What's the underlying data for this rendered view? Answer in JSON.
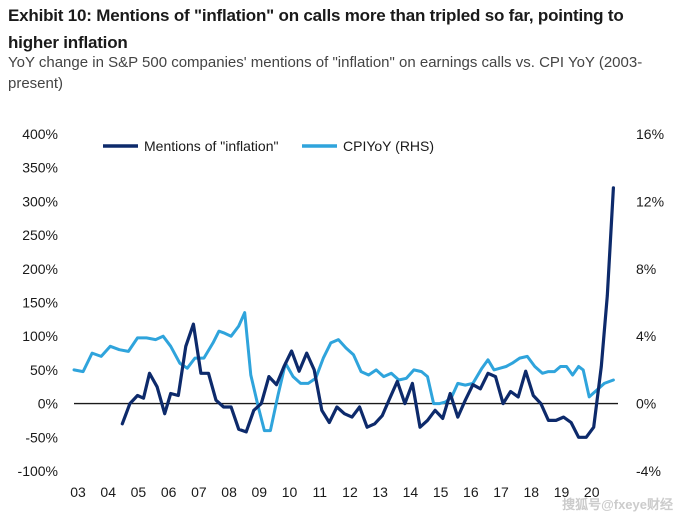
{
  "title": "Exhibit 10: Mentions of \"inflation\" on calls more than tripled so far, pointing to higher inflation",
  "subtitle": "YoY change in S&P 500 companies' mentions of \"inflation\" on earnings calls vs. CPI YoY (2003-present)",
  "watermark": "搜狐号@fxeye财经",
  "chart_data": {
    "type": "line",
    "title": "Exhibit 10: Mentions of \"inflation\" on calls more than tripled so far, pointing to higher inflation",
    "xlabel": "",
    "ylabel": "",
    "ylabel_right": "",
    "xlim": [
      2003,
      2021.4
    ],
    "ylim": [
      -100,
      400
    ],
    "ylim_right": [
      -4,
      16
    ],
    "y_ticks": [
      -100,
      -50,
      0,
      50,
      100,
      150,
      200,
      250,
      300,
      350,
      400
    ],
    "y_tick_labels": [
      "-100%",
      "-50%",
      "0%",
      "50%",
      "100%",
      "150%",
      "200%",
      "250%",
      "300%",
      "350%",
      "400%"
    ],
    "y_right_ticks": [
      -4,
      0,
      4,
      8,
      12,
      16
    ],
    "y_right_tick_labels": [
      "-4%",
      "0%",
      "4%",
      "8%",
      "12%",
      "16%"
    ],
    "x_ticks": [
      2003,
      2004,
      2005,
      2006,
      2007,
      2008,
      2009,
      2010,
      2011,
      2012,
      2013,
      2014,
      2015,
      2016,
      2017,
      2018,
      2019,
      2020
    ],
    "x_tick_labels": [
      "03",
      "04",
      "05",
      "06",
      "07",
      "08",
      "09",
      "10",
      "11",
      "12",
      "13",
      "14",
      "15",
      "16",
      "17",
      "18",
      "19",
      "20"
    ],
    "legend": {
      "position": "top-left",
      "orientation": "horizontal"
    },
    "series": [
      {
        "name": "Mentions of \"inflation\"",
        "axis": "left",
        "color": "#0d2a6b",
        "x": [
          2004.6,
          2004.85,
          2005.1,
          2005.3,
          2005.5,
          2005.75,
          2006.0,
          2006.2,
          2006.45,
          2006.7,
          2006.95,
          2007.2,
          2007.45,
          2007.7,
          2007.95,
          2008.2,
          2008.45,
          2008.7,
          2008.95,
          2009.2,
          2009.45,
          2009.7,
          2009.95,
          2010.2,
          2010.45,
          2010.7,
          2010.95,
          2011.2,
          2011.45,
          2011.7,
          2011.95,
          2012.2,
          2012.45,
          2012.7,
          2012.95,
          2013.2,
          2013.45,
          2013.7,
          2013.95,
          2014.2,
          2014.45,
          2014.7,
          2014.95,
          2015.2,
          2015.45,
          2015.7,
          2015.95,
          2016.2,
          2016.45,
          2016.7,
          2016.95,
          2017.2,
          2017.45,
          2017.7,
          2017.95,
          2018.2,
          2018.45,
          2018.7,
          2018.95,
          2019.2,
          2019.45,
          2019.7,
          2019.95,
          2020.2,
          2020.45,
          2020.65,
          2020.85
        ],
        "values": [
          -30,
          0,
          12,
          8,
          45,
          25,
          -15,
          15,
          12,
          85,
          118,
          45,
          45,
          5,
          -5,
          -5,
          -38,
          -42,
          -10,
          0,
          40,
          28,
          55,
          78,
          48,
          75,
          50,
          -10,
          -28,
          -5,
          -15,
          -20,
          -5,
          -35,
          -30,
          -18,
          8,
          33,
          0,
          30,
          -35,
          -25,
          -10,
          -22,
          15,
          -20,
          5,
          28,
          22,
          45,
          40,
          0,
          18,
          10,
          48,
          12,
          0,
          -25,
          -25,
          -20,
          -28,
          -50,
          -50,
          -35,
          55,
          160,
          320
        ]
      },
      {
        "name": "CPIYoY (RHS)",
        "axis": "right",
        "color": "#2fa4dc",
        "x": [
          2003.0,
          2003.3,
          2003.6,
          2003.9,
          2004.2,
          2004.5,
          2004.8,
          2005.1,
          2005.4,
          2005.7,
          2005.95,
          2006.2,
          2006.5,
          2006.75,
          2007.0,
          2007.3,
          2007.6,
          2007.8,
          2007.95,
          2008.2,
          2008.45,
          2008.65,
          2008.85,
          2009.1,
          2009.3,
          2009.5,
          2009.75,
          2010.0,
          2010.25,
          2010.5,
          2010.75,
          2011.0,
          2011.25,
          2011.5,
          2011.75,
          2012.0,
          2012.25,
          2012.5,
          2012.75,
          2013.0,
          2013.25,
          2013.5,
          2013.75,
          2014.0,
          2014.25,
          2014.5,
          2014.7,
          2014.9,
          2015.1,
          2015.3,
          2015.5,
          2015.7,
          2015.95,
          2016.2,
          2016.5,
          2016.7,
          2016.9,
          2017.1,
          2017.3,
          2017.5,
          2017.75,
          2018.0,
          2018.25,
          2018.5,
          2018.7,
          2018.9,
          2019.1,
          2019.3,
          2019.5,
          2019.7,
          2019.85,
          2020.05,
          2020.3,
          2020.55,
          2020.85
        ],
        "values": [
          2.0,
          1.9,
          3.0,
          2.8,
          3.4,
          3.2,
          3.1,
          3.9,
          3.9,
          3.8,
          4.0,
          3.4,
          2.4,
          2.1,
          2.7,
          2.7,
          3.6,
          4.3,
          4.2,
          4.0,
          4.6,
          5.4,
          1.7,
          -0.2,
          -1.6,
          -1.6,
          0.5,
          2.4,
          1.6,
          1.2,
          1.2,
          1.5,
          2.7,
          3.6,
          3.8,
          3.3,
          2.9,
          1.9,
          1.7,
          2.0,
          1.6,
          1.8,
          1.4,
          1.5,
          2.0,
          1.9,
          1.6,
          0.0,
          0.0,
          0.1,
          0.4,
          1.2,
          1.1,
          1.2,
          2.1,
          2.6,
          2.0,
          2.1,
          2.2,
          2.4,
          2.7,
          2.8,
          2.2,
          1.8,
          1.9,
          1.9,
          2.2,
          2.2,
          1.7,
          2.2,
          2.0,
          0.4,
          0.8,
          1.2,
          1.4
        ]
      }
    ]
  }
}
